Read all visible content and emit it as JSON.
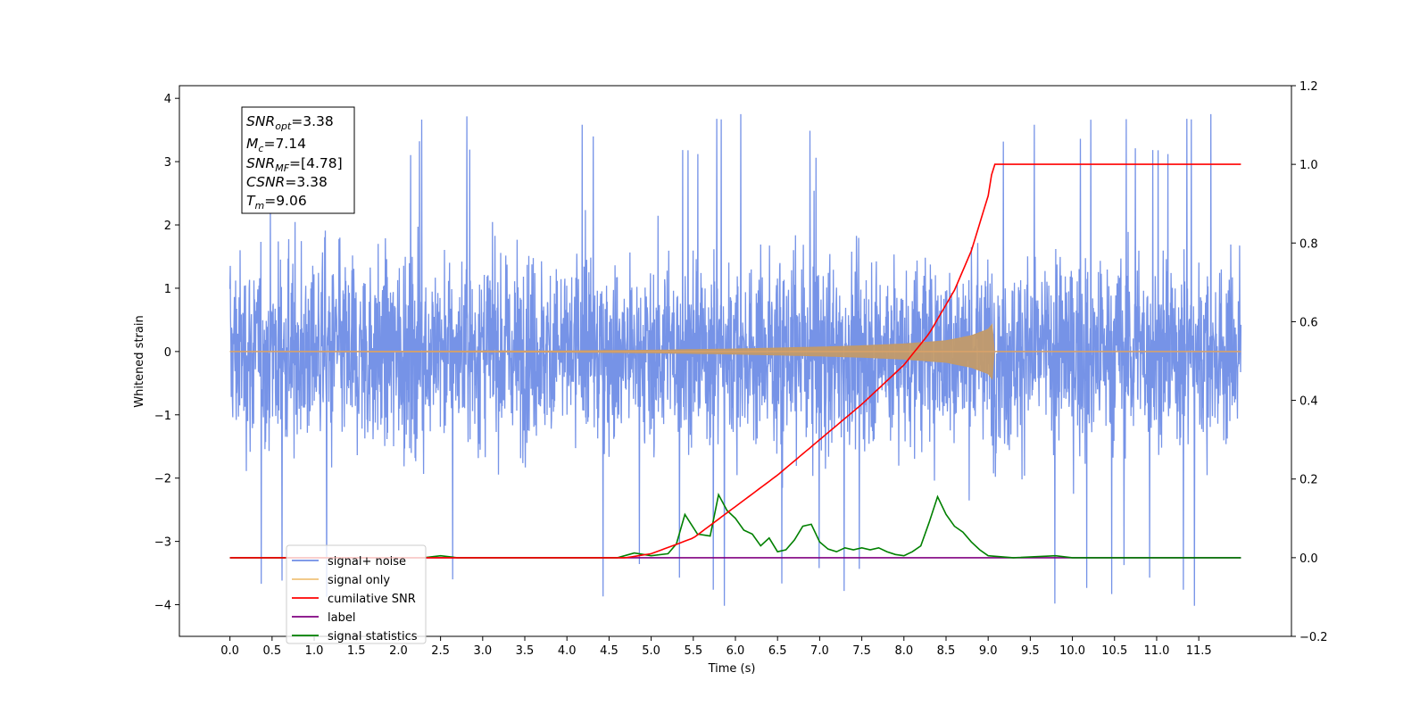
{
  "chart_data": {
    "type": "line",
    "xlabel": "Time (s)",
    "ylabel_left": "Whitened strain",
    "ylabel_right": "",
    "xlim": [
      -0.6,
      12.6
    ],
    "ylim_left": [
      -4.5,
      4.2
    ],
    "ylim_right": [
      -0.2,
      1.2
    ],
    "x_ticks": [
      "0.0",
      "0.5",
      "1.0",
      "1.5",
      "2.0",
      "2.5",
      "3.0",
      "3.5",
      "4.0",
      "4.5",
      "5.0",
      "5.5",
      "6.0",
      "6.5",
      "7.0",
      "7.5",
      "8.0",
      "8.5",
      "9.0",
      "9.5",
      "10.0",
      "10.5",
      "11.0",
      "11.5"
    ],
    "y_ticks_left": [
      "−4",
      "−3",
      "−2",
      "−1",
      "0",
      "1",
      "2",
      "3",
      "4"
    ],
    "y_ticks_right": [
      "−0.2",
      "0.0",
      "0.2",
      "0.4",
      "0.6",
      "0.8",
      "1.0",
      "1.2"
    ],
    "grid": false,
    "legend_position": "lower-left",
    "annotation": {
      "snr_opt": "3.38",
      "mc": "7.14",
      "snr_mf": "[4.78]",
      "csnr": "3.38",
      "tm": "9.06"
    },
    "series": [
      {
        "name": "signal+ noise",
        "axis": "left",
        "color": "#6f8de6",
        "description_x_range": [
          0.0,
          12.0
        ],
        "envelope": {
          "typical_min": -2.4,
          "typical_max": 2.4,
          "extreme_min": -4.1,
          "extreme_max": 3.8
        }
      },
      {
        "name": "signal only",
        "axis": "left",
        "color": "#f0c27a",
        "x": [
          0.0,
          4.0,
          5.0,
          6.0,
          7.0,
          7.5,
          8.0,
          8.5,
          8.8,
          9.0,
          9.06,
          9.07,
          12.0
        ],
        "amplitude": [
          0.0,
          0.01,
          0.02,
          0.04,
          0.07,
          0.09,
          0.12,
          0.17,
          0.25,
          0.35,
          0.45,
          0.0,
          0.0
        ]
      },
      {
        "name": "cumilative SNR",
        "axis": "right",
        "color": "#ff0000",
        "x": [
          0.0,
          4.7,
          5.0,
          5.5,
          6.0,
          6.5,
          7.0,
          7.5,
          8.0,
          8.3,
          8.6,
          8.8,
          9.0,
          9.06,
          12.0
        ],
        "values": [
          0.0,
          0.0,
          0.01,
          0.05,
          0.13,
          0.21,
          0.3,
          0.39,
          0.49,
          0.57,
          0.68,
          0.78,
          0.92,
          1.0,
          1.0
        ]
      },
      {
        "name": "label",
        "axis": "right",
        "color": "#800080",
        "x": [
          0.0,
          12.0
        ],
        "values": [
          0.0,
          0.0
        ]
      },
      {
        "name": "signal statistics",
        "axis": "right",
        "color": "#008000",
        "x": [
          0.0,
          2.3,
          2.5,
          2.7,
          4.6,
          4.8,
          5.0,
          5.2,
          5.3,
          5.4,
          5.55,
          5.7,
          5.8,
          5.9,
          6.0,
          6.1,
          6.2,
          6.3,
          6.4,
          6.5,
          6.6,
          6.7,
          6.8,
          6.9,
          7.0,
          7.1,
          7.2,
          7.3,
          7.4,
          7.5,
          7.6,
          7.7,
          7.8,
          7.9,
          8.0,
          8.1,
          8.2,
          8.3,
          8.4,
          8.5,
          8.6,
          8.7,
          8.8,
          8.9,
          9.0,
          9.3,
          9.8,
          10.0,
          12.0
        ],
        "values": [
          0.0,
          0.0,
          0.005,
          0.0,
          0.0,
          0.012,
          0.005,
          0.01,
          0.035,
          0.11,
          0.06,
          0.055,
          0.16,
          0.12,
          0.1,
          0.07,
          0.06,
          0.03,
          0.05,
          0.015,
          0.02,
          0.045,
          0.08,
          0.085,
          0.04,
          0.022,
          0.015,
          0.025,
          0.02,
          0.025,
          0.02,
          0.025,
          0.015,
          0.008,
          0.005,
          0.015,
          0.03,
          0.09,
          0.155,
          0.11,
          0.08,
          0.065,
          0.04,
          0.02,
          0.005,
          0.0,
          0.005,
          0.0,
          0.0
        ]
      }
    ]
  }
}
